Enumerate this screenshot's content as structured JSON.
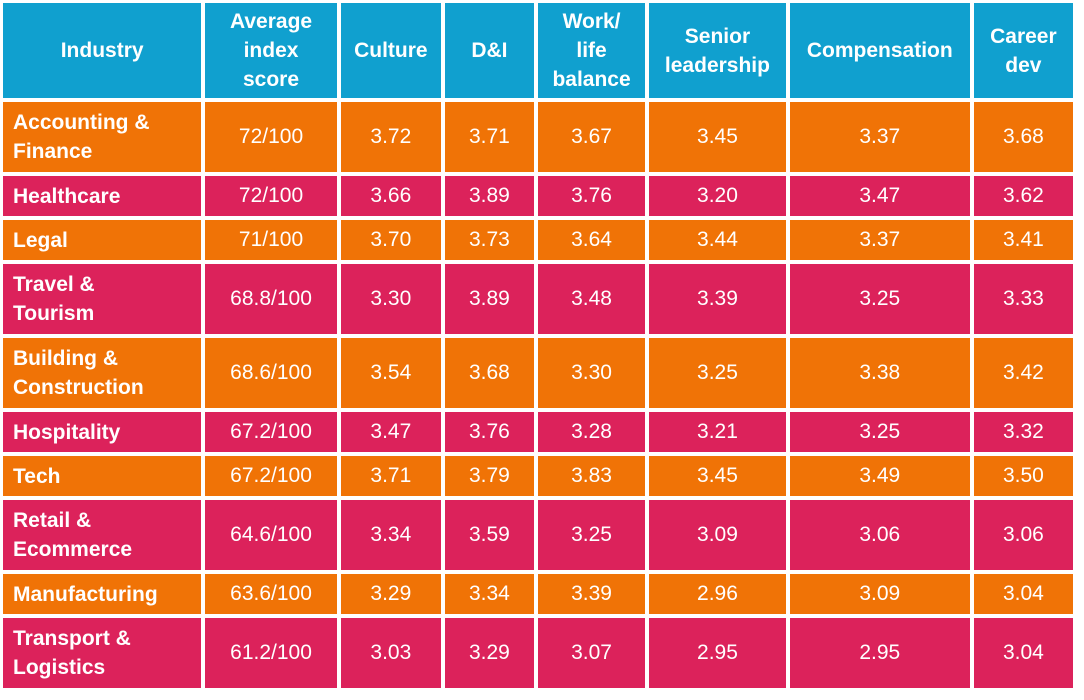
{
  "chart_data": {
    "type": "table",
    "columns": [
      "Industry",
      "Average index score",
      "Culture",
      "D&I",
      "Work/ life balance",
      "Senior leadership",
      "Compensation",
      "Career dev"
    ],
    "column_lines": [
      [
        "Industry"
      ],
      [
        "Average",
        "index",
        "score"
      ],
      [
        "Culture"
      ],
      [
        "D&I"
      ],
      [
        "Work/",
        "life",
        "balance"
      ],
      [
        "Senior",
        "leadership"
      ],
      [
        "Compensation"
      ],
      [
        "Career",
        "dev"
      ]
    ],
    "rows": [
      {
        "industry": "Accounting & Finance",
        "industry_lines": [
          "Accounting &",
          "Finance"
        ],
        "score": "72/100",
        "values": [
          "3.72",
          "3.71",
          "3.67",
          "3.45",
          "3.37",
          "3.68"
        ]
      },
      {
        "industry": "Healthcare",
        "industry_lines": [
          "Healthcare"
        ],
        "score": "72/100",
        "values": [
          "3.66",
          "3.89",
          "3.76",
          "3.20",
          "3.47",
          "3.62"
        ]
      },
      {
        "industry": "Legal",
        "industry_lines": [
          "Legal"
        ],
        "score": "71/100",
        "values": [
          "3.70",
          "3.73",
          "3.64",
          "3.44",
          "3.37",
          "3.41"
        ]
      },
      {
        "industry": "Travel & Tourism",
        "industry_lines": [
          "Travel &",
          "Tourism"
        ],
        "score": "68.8/100",
        "values": [
          "3.30",
          "3.89",
          "3.48",
          "3.39",
          "3.25",
          "3.33"
        ]
      },
      {
        "industry": "Building & Construction",
        "industry_lines": [
          "Building &",
          "Construction"
        ],
        "score": "68.6/100",
        "values": [
          "3.54",
          "3.68",
          "3.30",
          "3.25",
          "3.38",
          "3.42"
        ]
      },
      {
        "industry": "Hospitality",
        "industry_lines": [
          "Hospitality"
        ],
        "score": "67.2/100",
        "values": [
          "3.47",
          "3.76",
          "3.28",
          "3.21",
          "3.25",
          "3.32"
        ]
      },
      {
        "industry": "Tech",
        "industry_lines": [
          "Tech"
        ],
        "score": "67.2/100",
        "values": [
          "3.71",
          "3.79",
          "3.83",
          "3.45",
          "3.49",
          "3.50"
        ]
      },
      {
        "industry": "Retail & Ecommerce",
        "industry_lines": [
          "Retail &",
          "Ecommerce"
        ],
        "score": "64.6/100",
        "values": [
          "3.34",
          "3.59",
          "3.25",
          "3.09",
          "3.06",
          "3.06"
        ]
      },
      {
        "industry": "Manufacturing",
        "industry_lines": [
          "Manufacturing"
        ],
        "score": "63.6/100",
        "values": [
          "3.29",
          "3.34",
          "3.39",
          "2.96",
          "3.09",
          "3.04"
        ]
      },
      {
        "industry": "Transport & Logistics",
        "industry_lines": [
          "Transport &",
          "Logistics"
        ],
        "score": "61.2/100",
        "values": [
          "3.03",
          "3.29",
          "3.07",
          "2.95",
          "2.95",
          "3.04"
        ]
      }
    ],
    "colors": {
      "header": "#10a0cf",
      "orange_row": "#f07306",
      "pink_row": "#dc225b",
      "text": "#ffffff"
    }
  }
}
